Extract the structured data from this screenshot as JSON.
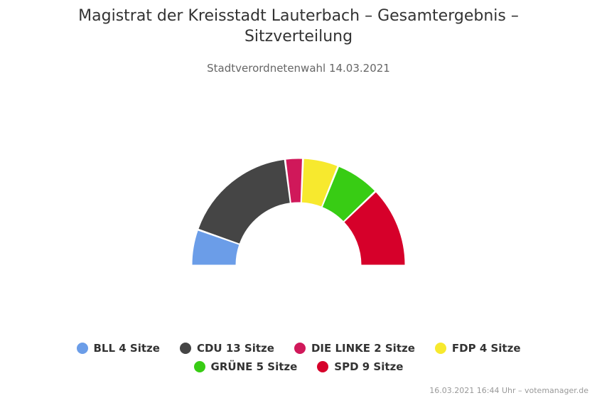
{
  "chart_data": {
    "type": "pie",
    "variant": "semi-circle donut (seat distribution)",
    "title": "Magistrat der Kreisstadt Lauterbach – Gesamtergebnis – Sitzverteilung",
    "subtitle": "Stadtverordnetenwahl 14.03.2021",
    "categories": [
      "BLL",
      "CDU",
      "DIE LINKE",
      "FDP",
      "GRÜNE",
      "SPD"
    ],
    "values": [
      4,
      13,
      2,
      4,
      5,
      9
    ],
    "colors": [
      "#6b9de8",
      "#454545",
      "#d0185a",
      "#f7e92e",
      "#38cc14",
      "#d6002a"
    ],
    "legend_labels": [
      "BLL 4 Sitze",
      "CDU 13 Sitze",
      "DIE LINKE 2 Sitze",
      "FDP 4 Sitze",
      "GRÜNE 5 Sitze",
      "SPD 9 Sitze"
    ],
    "legend_placement": "bottom",
    "credits": "16.03.2021 16:44 Uhr – votemanager.de"
  }
}
